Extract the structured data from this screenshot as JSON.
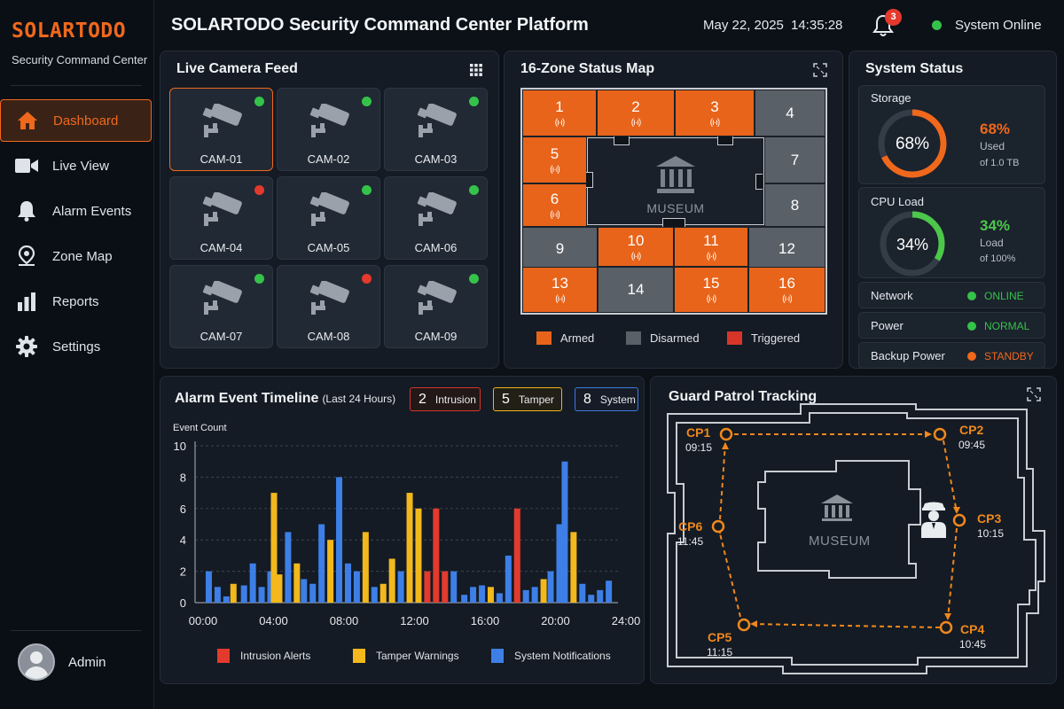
{
  "brand": {
    "name": "SOLARTODO",
    "subtitle": "Security Command Center"
  },
  "header": {
    "title": "SOLARTODO Security Command Center Platform",
    "date": "May 22, 2025",
    "time": "14:35:28",
    "notifications": "3",
    "system_status": "System Online"
  },
  "nav": [
    {
      "label": "Dashboard",
      "icon": "home-icon",
      "active": true
    },
    {
      "label": "Live View",
      "icon": "video-camera-icon"
    },
    {
      "label": "Alarm Events",
      "icon": "bell-icon"
    },
    {
      "label": "Zone Map",
      "icon": "map-pin-icon"
    },
    {
      "label": "Reports",
      "icon": "bar-chart-icon"
    },
    {
      "label": "Settings",
      "icon": "gear-icon"
    }
  ],
  "user": {
    "name": "Admin"
  },
  "cameras": {
    "title": "Live Camera Feed",
    "items": [
      {
        "label": "CAM-01",
        "status": "online"
      },
      {
        "label": "CAM-02",
        "status": "online"
      },
      {
        "label": "CAM-03",
        "status": "online"
      },
      {
        "label": "CAM-04",
        "status": "alert"
      },
      {
        "label": "CAM-05",
        "status": "online"
      },
      {
        "label": "CAM-06",
        "status": "online"
      },
      {
        "label": "CAM-07",
        "status": "online"
      },
      {
        "label": "CAM-08",
        "status": "alert"
      },
      {
        "label": "CAM-09",
        "status": "online"
      }
    ]
  },
  "zones": {
    "title": "16-Zone Status Map",
    "center_label": "MUSEUM",
    "items": [
      {
        "n": "1",
        "state": "armed"
      },
      {
        "n": "2",
        "state": "armed"
      },
      {
        "n": "3",
        "state": "armed"
      },
      {
        "n": "4",
        "state": "disarmed"
      },
      {
        "n": "5",
        "state": "armed"
      },
      {
        "n": "6",
        "state": "armed"
      },
      {
        "n": "7",
        "state": "disarmed"
      },
      {
        "n": "8",
        "state": "disarmed"
      },
      {
        "n": "9",
        "state": "disarmed"
      },
      {
        "n": "10",
        "state": "armed"
      },
      {
        "n": "11",
        "state": "armed"
      },
      {
        "n": "12",
        "state": "disarmed"
      },
      {
        "n": "13",
        "state": "armed"
      },
      {
        "n": "14",
        "state": "disarmed"
      },
      {
        "n": "15",
        "state": "armed"
      },
      {
        "n": "16",
        "state": "armed"
      }
    ],
    "signal_glyph": "(ı·ı)",
    "legend": [
      {
        "label": "Armed",
        "color": "#e8641a"
      },
      {
        "label": "Disarmed",
        "color": "#5a6068"
      },
      {
        "label": "Triggered",
        "color": "#d8352a"
      }
    ]
  },
  "system_status": {
    "title": "System Status",
    "storage": {
      "label": "Storage",
      "percent": 68,
      "percent_text": "68%",
      "sub": "Used",
      "sub2": "of 1.0 TB",
      "color": "#f0681c"
    },
    "cpu": {
      "label": "CPU Load",
      "percent": 34,
      "percent_text": "34%",
      "sub": "Load",
      "sub2": "of 100%",
      "color": "#4cc74a"
    },
    "rows": [
      {
        "label": "Network",
        "value": "ONLINE",
        "color": "#35c24a"
      },
      {
        "label": "Power",
        "value": "NORMAL",
        "color": "#35c24a"
      },
      {
        "label": "Backup Power",
        "value": "STANDBY",
        "color": "#f0681c"
      }
    ]
  },
  "timeline": {
    "title": "Alarm Event Timeline",
    "subtitle": "(Last 24 Hours)",
    "tags": [
      {
        "count": "2",
        "label": "Intrusion",
        "color": "#d8352a"
      },
      {
        "count": "5",
        "label": "Tamper",
        "color": "#f0b41c"
      },
      {
        "count": "8",
        "label": "System",
        "color": "#3d7be0"
      }
    ]
  },
  "chart_data": {
    "type": "bar",
    "title": "Alarm Event Timeline",
    "subtitle": "(Last 24 Hours)",
    "ylabel": "Event Count",
    "xlabel": "",
    "ylim": [
      0,
      10
    ],
    "yticks": [
      "0",
      "2",
      "4",
      "6",
      "8",
      "10"
    ],
    "xticks": [
      "00:00",
      "04:00",
      "08:00",
      "12:00",
      "16:00",
      "20:00",
      "24:00"
    ],
    "x_range": [
      0,
      24
    ],
    "legend": [
      {
        "name": "Intrusion Alerts",
        "color": "#e23b2e"
      },
      {
        "name": "Tamper Warnings",
        "color": "#f2b81c"
      },
      {
        "name": "System Notifications",
        "color": "#3d7fe6"
      }
    ],
    "bars": [
      {
        "x": 0.3,
        "series": "System Notifications",
        "value": 2.0
      },
      {
        "x": 0.8,
        "series": "System Notifications",
        "value": 1.0
      },
      {
        "x": 1.3,
        "series": "System Notifications",
        "value": 0.4
      },
      {
        "x": 1.7,
        "series": "Tamper Warnings",
        "value": 1.2
      },
      {
        "x": 2.3,
        "series": "System Notifications",
        "value": 1.1
      },
      {
        "x": 2.8,
        "series": "System Notifications",
        "value": 2.5
      },
      {
        "x": 3.3,
        "series": "System Notifications",
        "value": 1.0
      },
      {
        "x": 3.8,
        "series": "System Notifications",
        "value": 2.0
      },
      {
        "x": 4.0,
        "series": "Tamper Warnings",
        "value": 7.0
      },
      {
        "x": 4.3,
        "series": "Tamper Warnings",
        "value": 1.8
      },
      {
        "x": 4.8,
        "series": "System Notifications",
        "value": 4.5
      },
      {
        "x": 5.3,
        "series": "Tamper Warnings",
        "value": 2.5
      },
      {
        "x": 5.7,
        "series": "System Notifications",
        "value": 1.5
      },
      {
        "x": 6.2,
        "series": "System Notifications",
        "value": 1.2
      },
      {
        "x": 6.7,
        "series": "System Notifications",
        "value": 5.0
      },
      {
        "x": 7.2,
        "series": "Tamper Warnings",
        "value": 4.0
      },
      {
        "x": 7.7,
        "series": "System Notifications",
        "value": 8.0
      },
      {
        "x": 8.2,
        "series": "System Notifications",
        "value": 2.5
      },
      {
        "x": 8.7,
        "series": "System Notifications",
        "value": 2.0
      },
      {
        "x": 9.2,
        "series": "Tamper Warnings",
        "value": 4.5
      },
      {
        "x": 9.7,
        "series": "System Notifications",
        "value": 1.0
      },
      {
        "x": 10.2,
        "series": "Tamper Warnings",
        "value": 1.2
      },
      {
        "x": 10.7,
        "series": "Tamper Warnings",
        "value": 2.8
      },
      {
        "x": 11.2,
        "series": "System Notifications",
        "value": 2.0
      },
      {
        "x": 11.7,
        "series": "Tamper Warnings",
        "value": 7.0
      },
      {
        "x": 12.2,
        "series": "Tamper Warnings",
        "value": 6.0
      },
      {
        "x": 12.7,
        "series": "Intrusion Alerts",
        "value": 2.0
      },
      {
        "x": 13.2,
        "series": "Intrusion Alerts",
        "value": 6.0
      },
      {
        "x": 13.7,
        "series": "Intrusion Alerts",
        "value": 2.0
      },
      {
        "x": 14.2,
        "series": "System Notifications",
        "value": 2.0
      },
      {
        "x": 14.8,
        "series": "System Notifications",
        "value": 0.5
      },
      {
        "x": 15.3,
        "series": "System Notifications",
        "value": 1.0
      },
      {
        "x": 15.8,
        "series": "System Notifications",
        "value": 1.1
      },
      {
        "x": 16.3,
        "series": "Tamper Warnings",
        "value": 1.0
      },
      {
        "x": 16.8,
        "series": "System Notifications",
        "value": 0.6
      },
      {
        "x": 17.3,
        "series": "System Notifications",
        "value": 3.0
      },
      {
        "x": 17.8,
        "series": "Intrusion Alerts",
        "value": 6.0
      },
      {
        "x": 18.3,
        "series": "System Notifications",
        "value": 0.8
      },
      {
        "x": 18.8,
        "series": "System Notifications",
        "value": 1.0
      },
      {
        "x": 19.3,
        "series": "Tamper Warnings",
        "value": 1.5
      },
      {
        "x": 19.7,
        "series": "System Notifications",
        "value": 2.0
      },
      {
        "x": 20.2,
        "series": "System Notifications",
        "value": 5.0
      },
      {
        "x": 20.5,
        "series": "System Notifications",
        "value": 9.0
      },
      {
        "x": 21.0,
        "series": "Tamper Warnings",
        "value": 4.5
      },
      {
        "x": 21.5,
        "series": "System Notifications",
        "value": 1.2
      },
      {
        "x": 22.0,
        "series": "System Notifications",
        "value": 0.5
      },
      {
        "x": 22.5,
        "series": "System Notifications",
        "value": 0.8
      },
      {
        "x": 23.0,
        "series": "System Notifications",
        "value": 1.4
      }
    ]
  },
  "patrol": {
    "title": "Guard Patrol Tracking",
    "center_label": "MUSEUM",
    "checkpoints": [
      {
        "name": "CP1",
        "time": "09:15"
      },
      {
        "name": "CP2",
        "time": "09:45"
      },
      {
        "name": "CP3",
        "time": "10:15"
      },
      {
        "name": "CP4",
        "time": "10:45"
      },
      {
        "name": "CP5",
        "time": "11:15"
      },
      {
        "name": "CP6",
        "time": "11:45"
      }
    ]
  }
}
